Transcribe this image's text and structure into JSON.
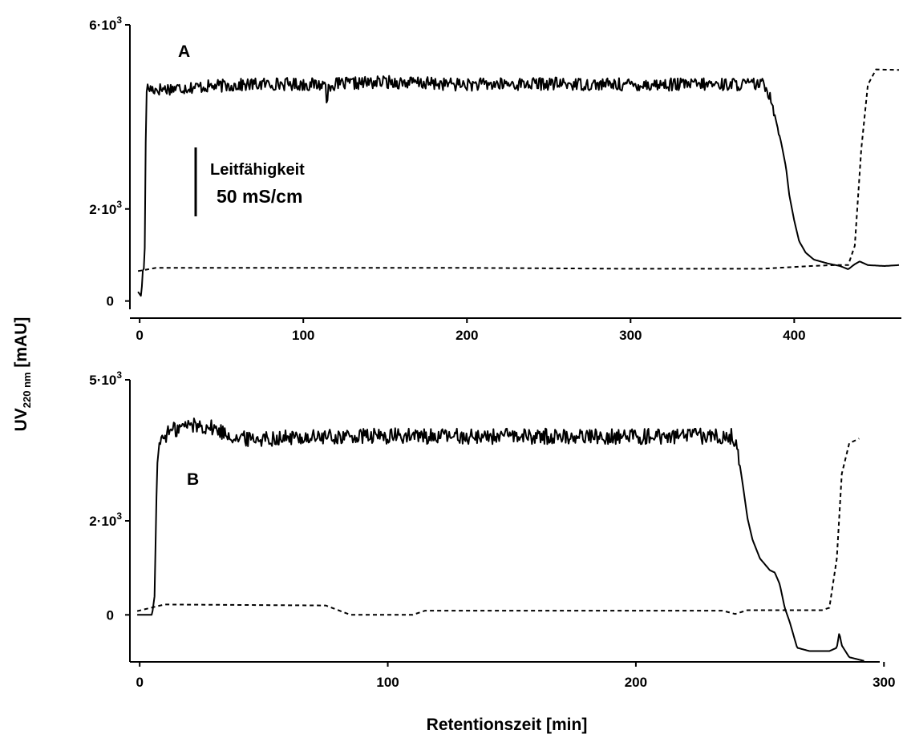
{
  "figure": {
    "ylabel": {
      "main": "UV",
      "sub": "220 nm",
      "unit": " [mAU]"
    },
    "xlabel": "Retentionszeit [min]"
  },
  "chart_data": [
    {
      "type": "line",
      "panel_label": "A",
      "xlim": [
        -4,
        465
      ],
      "ylim": [
        -250,
        6000
      ],
      "xticks": [
        0,
        100,
        200,
        300,
        400
      ],
      "yticks": [
        {
          "value": 6000,
          "mantissa": "6·10",
          "exp": "3"
        },
        {
          "value": 2000,
          "mantissa": "2·10",
          "exp": "3"
        },
        {
          "value": 0,
          "mantissa": "0",
          "exp": ""
        }
      ],
      "scale_bar": {
        "label_line1": "Leitfähigkeit",
        "label_line2": "50 mS/cm"
      },
      "series": [
        {
          "role": "uv-absorbance",
          "style": "solid",
          "noise_amplitude": 140,
          "points": [
            [
              -1,
              200
            ],
            [
              1,
              100
            ],
            [
              2,
              700
            ],
            [
              3,
              700
            ],
            [
              4,
              4620
            ],
            [
              10,
              4600
            ],
            [
              40,
              4660
            ],
            [
              80,
              4720
            ],
            [
              113,
              4700
            ],
            [
              114,
              4700
            ],
            [
              114.5,
              3820
            ],
            [
              115,
              4700
            ],
            [
              150,
              4760
            ],
            [
              200,
              4700
            ],
            [
              250,
              4720
            ],
            [
              300,
              4700
            ],
            [
              380,
              4710
            ],
            [
              383,
              4650
            ],
            [
              386,
              4400
            ],
            [
              389,
              3900
            ],
            [
              392,
              3450
            ],
            [
              395,
              2900
            ],
            [
              397,
              2300
            ],
            [
              400,
              1750
            ],
            [
              403,
              1300
            ],
            [
              407,
              1050
            ],
            [
              412,
              900
            ],
            [
              420,
              820
            ],
            [
              428,
              760
            ],
            [
              433,
              690
            ],
            [
              437,
              800
            ],
            [
              440,
              860
            ],
            [
              445,
              780
            ],
            [
              455,
              760
            ],
            [
              464,
              780
            ]
          ]
        },
        {
          "role": "conductivity",
          "style": "dashed",
          "points": [
            [
              -1,
              650
            ],
            [
              10,
              720
            ],
            [
              80,
              720
            ],
            [
              200,
              720
            ],
            [
              300,
              700
            ],
            [
              380,
              700
            ],
            [
              410,
              760
            ],
            [
              425,
              780
            ],
            [
              433,
              780
            ],
            [
              437,
              1200
            ],
            [
              441,
              3300
            ],
            [
              445,
              4700
            ],
            [
              450,
              5030
            ],
            [
              464,
              5020
            ]
          ]
        }
      ]
    },
    {
      "type": "line",
      "panel_label": "B",
      "xlim": [
        -2,
        297
      ],
      "ylim": [
        -1000,
        5000
      ],
      "xticks": [
        0,
        100,
        200,
        300
      ],
      "yticks": [
        {
          "value": 5000,
          "mantissa": "5·10",
          "exp": "3"
        },
        {
          "value": 2000,
          "mantissa": "2·10",
          "exp": "3"
        },
        {
          "value": 0,
          "mantissa": "0",
          "exp": ""
        }
      ],
      "series": [
        {
          "role": "uv-absorbance",
          "style": "solid",
          "noise_amplitude": 170,
          "points": [
            [
              -1,
              0
            ],
            [
              5,
              0
            ],
            [
              6,
              400
            ],
            [
              7,
              3150
            ],
            [
              8,
              3700
            ],
            [
              12,
              3900
            ],
            [
              20,
              4050
            ],
            [
              28,
              4000
            ],
            [
              40,
              3750
            ],
            [
              100,
              3800
            ],
            [
              140,
              3800
            ],
            [
              200,
              3800
            ],
            [
              239,
              3800
            ],
            [
              241,
              3500
            ],
            [
              243,
              2800
            ],
            [
              245,
              2050
            ],
            [
              247,
              1600
            ],
            [
              250,
              1200
            ],
            [
              254,
              950
            ],
            [
              256,
              900
            ],
            [
              258,
              650
            ],
            [
              260,
              150
            ],
            [
              262,
              -150
            ],
            [
              265,
              -700
            ],
            [
              270,
              -770
            ],
            [
              278,
              -770
            ],
            [
              281,
              -700
            ],
            [
              282,
              -380
            ],
            [
              283,
              -650
            ],
            [
              286,
              -900
            ],
            [
              292,
              -980
            ]
          ]
        },
        {
          "role": "conductivity",
          "style": "dashed",
          "points": [
            [
              -1,
              80
            ],
            [
              10,
              220
            ],
            [
              75,
              200
            ],
            [
              85,
              0
            ],
            [
              110,
              0
            ],
            [
              115,
              90
            ],
            [
              235,
              90
            ],
            [
              240,
              20
            ],
            [
              245,
              100
            ],
            [
              275,
              100
            ],
            [
              278,
              150
            ],
            [
              281,
              1200
            ],
            [
              283,
              3000
            ],
            [
              286,
              3650
            ],
            [
              290,
              3750
            ]
          ]
        }
      ]
    }
  ]
}
